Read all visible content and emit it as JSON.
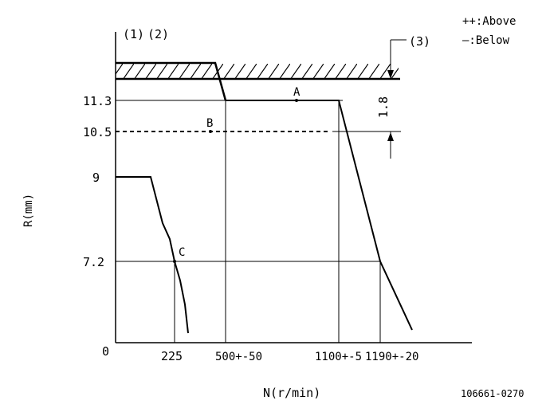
{
  "diagram": {
    "legend": {
      "above": "++:Above",
      "below": "—:Below"
    },
    "notes": {
      "n1": "(1)",
      "n2": "(2)",
      "n3": "(3)"
    },
    "dimension": "1.8",
    "points": {
      "a": "A",
      "b": "B",
      "c": "C"
    },
    "y_axis": {
      "label": "R(mm)",
      "ticks": [
        "11.3",
        "10.5",
        "9",
        "7.2"
      ]
    },
    "x_axis": {
      "label": "N(r/min)",
      "origin": "0",
      "ticks": [
        "225",
        "500+-50",
        "1100+-5",
        "1190+-20"
      ]
    },
    "part_number": "106661-0270"
  }
}
